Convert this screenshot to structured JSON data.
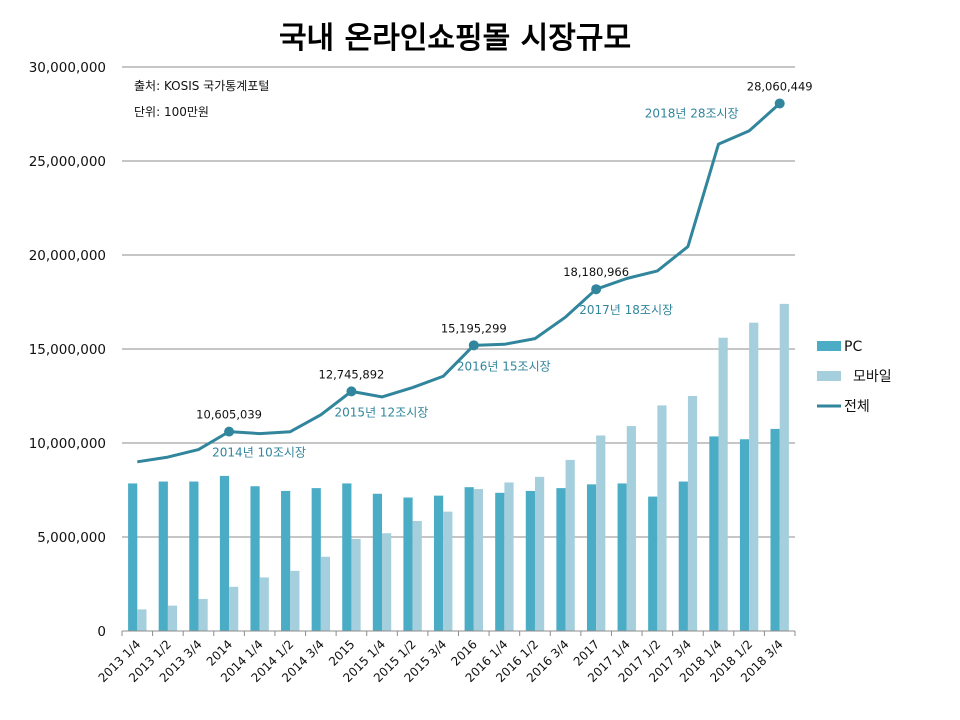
{
  "chart_data": {
    "type": "bar",
    "title": "국내 온라인쇼핑몰 시장규모",
    "notes": [
      "출처: KOSIS 국가통계포털",
      "단위: 100만원"
    ],
    "categories": [
      "2013 1/4",
      "2013 1/2",
      "2013 3/4",
      "2014",
      "2014 1/4",
      "2014 1/2",
      "2014 3/4",
      "2015",
      "2015 1/4",
      "2015 1/2",
      "2015 3/4",
      "2016",
      "2016 1/4",
      "2016 1/2",
      "2016 3/4",
      "2017",
      "2017 1/4",
      "2017 1/2",
      "2017 3/4",
      "2018 1/4",
      "2018 1/2",
      "2018 3/4"
    ],
    "ylim": [
      0,
      30000000
    ],
    "yticks": [
      0,
      5000000,
      10000000,
      15000000,
      20000000,
      25000000,
      30000000
    ],
    "ytick_labels": [
      "0",
      "5,000,000",
      "10,000,000",
      "15,000,000",
      "20,000,000",
      "25,000,000",
      "30,000,000"
    ],
    "series": [
      {
        "name": "PC",
        "kind": "bar",
        "color": "#4bacc6",
        "values": [
          7850000,
          7950000,
          7950000,
          8250000,
          7700000,
          7450000,
          7600000,
          7850000,
          7300000,
          7100000,
          7200000,
          7650000,
          7350000,
          7450000,
          7600000,
          7800000,
          7850000,
          7150000,
          7950000,
          10350000,
          10200000,
          10750000
        ]
      },
      {
        "name": "모바일",
        "kind": "bar",
        "color": "#a5cfdc",
        "values": [
          1150000,
          1350000,
          1700000,
          2350000,
          2850000,
          3200000,
          3950000,
          4900000,
          5200000,
          5850000,
          6350000,
          7550000,
          7900000,
          8200000,
          9100000,
          10400000,
          10900000,
          12000000,
          12500000,
          15600000,
          16400000,
          17400000
        ]
      },
      {
        "name": "전체",
        "kind": "line",
        "color": "#31859c",
        "values": [
          9000000,
          9250000,
          9650000,
          10605039,
          10500000,
          10600000,
          11500000,
          12745892,
          12450000,
          12950000,
          13550000,
          15195299,
          15250000,
          15550000,
          16700000,
          18180966,
          18750000,
          19150000,
          20450000,
          25900000,
          26600000,
          28060449
        ]
      }
    ],
    "data_labels": [
      {
        "index": 3,
        "text": "10,605,039"
      },
      {
        "index": 7,
        "text": "12,745,892"
      },
      {
        "index": 11,
        "text": "15,195,299"
      },
      {
        "index": 15,
        "text": "18,180,966"
      },
      {
        "index": 21,
        "text": "28,060,449"
      }
    ],
    "annotations": [
      {
        "index": 3,
        "text": "2014년  10조시장"
      },
      {
        "index": 7,
        "text": "2015년  12조시장"
      },
      {
        "index": 11,
        "text": "2016년  15조시장"
      },
      {
        "index": 15,
        "text": "2017년  18조시장"
      },
      {
        "index": 21,
        "text": "2018년  28조시장"
      }
    ],
    "annotation_color": "#31859c",
    "grid": true,
    "legend_position": "right"
  }
}
